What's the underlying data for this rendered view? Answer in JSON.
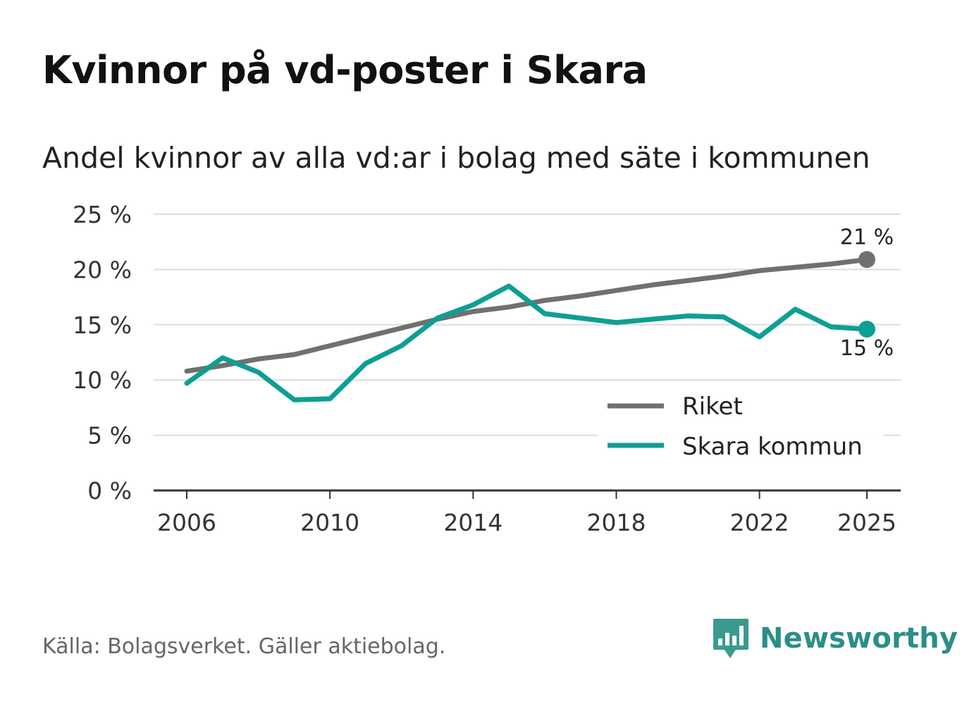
{
  "chart_data": {
    "type": "line",
    "title": "Kvinnor på vd-poster i Skara",
    "subtitle": "Andel kvinnor av alla vd:ar i bolag med säte i kommunen",
    "x": [
      2006,
      2007,
      2008,
      2009,
      2010,
      2011,
      2012,
      2013,
      2014,
      2015,
      2016,
      2017,
      2018,
      2019,
      2020,
      2021,
      2022,
      2023,
      2024,
      2025
    ],
    "series": [
      {
        "name": "Riket",
        "color": "#707070",
        "values": [
          10.8,
          11.3,
          11.9,
          12.3,
          13.1,
          13.9,
          14.7,
          15.5,
          16.2,
          16.6,
          17.2,
          17.6,
          18.1,
          18.6,
          19.0,
          19.4,
          19.9,
          20.2,
          20.5,
          20.9
        ]
      },
      {
        "name": "Skara kommun",
        "color": "#0e9e94",
        "values": [
          9.7,
          12.0,
          10.7,
          8.2,
          8.3,
          11.5,
          13.1,
          15.6,
          16.8,
          18.5,
          16.0,
          15.6,
          15.2,
          15.5,
          15.8,
          15.7,
          13.9,
          16.4,
          14.8,
          14.6
        ]
      }
    ],
    "end_labels": [
      "21 %",
      "15 %"
    ],
    "x_ticks": [
      2006,
      2010,
      2014,
      2018,
      2022,
      2025
    ],
    "x_tick_labels": [
      "2006",
      "2010",
      "2014",
      "2018",
      "2022",
      "2025"
    ],
    "y_ticks": [
      0,
      5,
      10,
      15,
      20,
      25
    ],
    "y_tick_labels": [
      "0 %",
      "5 %",
      "10 %",
      "15 %",
      "20 %",
      "25 %"
    ],
    "xlim": [
      2006,
      2025
    ],
    "ylim": [
      0,
      25
    ],
    "grid": true,
    "legend_position": "bottom-right",
    "xlabel": "",
    "ylabel": ""
  },
  "footer": {
    "source": "Källa: Bolagsverket. Gäller aktiebolag.",
    "brand": "Newsworthy"
  },
  "colors": {
    "brand": "#2a8f86",
    "grid": "#dddddd",
    "axis": "#333333"
  },
  "icons": {
    "brand_logo": "bar-chart-speech-bubble-icon"
  }
}
